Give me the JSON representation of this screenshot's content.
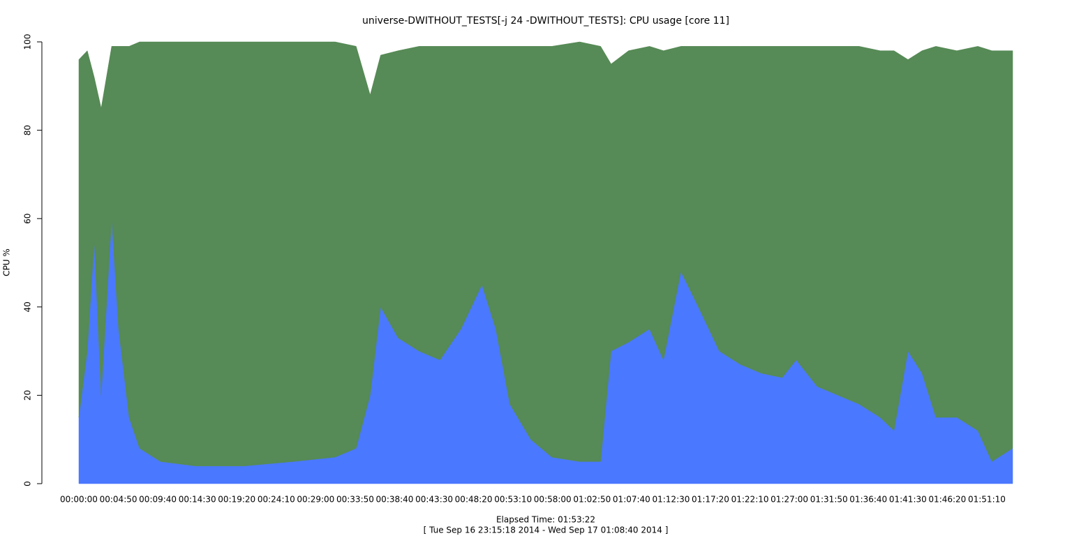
{
  "chart_data": {
    "type": "stacked-area",
    "title": "universe-DWITHOUT_TESTS[-j 24  -DWITHOUT_TESTS]: CPU usage [core 11]",
    "y_label": "CPU %",
    "x_label": "Elapsed Time: 01:53:22",
    "subtitle": "[ Tue Sep 16 23:15:18 2014 - Wed Sep 17 01:08:40 2014 ]",
    "x": [
      0,
      62,
      113,
      164,
      241,
      292,
      369,
      446,
      600,
      857,
      1216,
      1575,
      1883,
      2037,
      2140,
      2217,
      2345,
      2499,
      2653,
      2807,
      2961,
      3063,
      3166,
      3320,
      3474,
      3679,
      3833,
      3910,
      4038,
      4192,
      4295,
      4423,
      4551,
      4705,
      4859,
      5013,
      5167,
      5270,
      5424,
      5578,
      5732,
      5886,
      5988,
      6091,
      6194,
      6296,
      6450,
      6604,
      6707,
      6860
    ],
    "series": [
      {
        "color": "#4a78ff",
        "values": [
          15,
          30,
          55,
          20,
          60,
          35,
          15,
          8,
          5,
          4,
          4,
          5,
          6,
          8,
          20,
          40,
          33,
          30,
          28,
          35,
          45,
          35,
          18,
          10,
          6,
          5,
          5,
          30,
          32,
          35,
          28,
          48,
          40,
          30,
          27,
          25,
          24,
          28,
          22,
          20,
          18,
          15,
          12,
          30,
          25,
          15,
          15,
          12,
          5,
          8
        ]
      },
      {
        "color": "#568a56",
        "values": [
          81,
          68,
          37,
          65,
          39,
          64,
          84,
          92,
          95,
          96,
          96,
          95,
          94,
          91,
          68,
          57,
          65,
          69,
          71,
          64,
          54,
          64,
          81,
          89,
          93,
          95,
          94,
          65,
          66,
          64,
          70,
          51,
          59,
          69,
          72,
          74,
          75,
          71,
          77,
          79,
          81,
          83,
          86,
          66,
          73,
          84,
          83,
          87,
          93,
          90
        ]
      }
    ],
    "xlim": [
      0,
      6860
    ],
    "ylim": [
      0,
      100
    ],
    "yticks": [
      0,
      20,
      40,
      60,
      80,
      100
    ],
    "xticks": [
      {
        "value": 0,
        "label": "00:00:00"
      },
      {
        "value": 290,
        "label": "00:04:50"
      },
      {
        "value": 580,
        "label": "00:09:40"
      },
      {
        "value": 870,
        "label": "00:14:30"
      },
      {
        "value": 1160,
        "label": "00:19:20"
      },
      {
        "value": 1450,
        "label": "00:24:10"
      },
      {
        "value": 1740,
        "label": "00:29:00"
      },
      {
        "value": 2030,
        "label": "00:33:50"
      },
      {
        "value": 2320,
        "label": "00:38:40"
      },
      {
        "value": 2610,
        "label": "00:43:30"
      },
      {
        "value": 2900,
        "label": "00:48:20"
      },
      {
        "value": 3190,
        "label": "00:53:10"
      },
      {
        "value": 3480,
        "label": "00:58:00"
      },
      {
        "value": 3770,
        "label": "01:02:50"
      },
      {
        "value": 4060,
        "label": "01:07:40"
      },
      {
        "value": 4350,
        "label": "01:12:30"
      },
      {
        "value": 4640,
        "label": "01:17:20"
      },
      {
        "value": 4930,
        "label": "01:22:10"
      },
      {
        "value": 5220,
        "label": "01:27:00"
      },
      {
        "value": 5510,
        "label": "01:31:50"
      },
      {
        "value": 5800,
        "label": "01:36:40"
      },
      {
        "value": 6090,
        "label": "01:41:30"
      },
      {
        "value": 6380,
        "label": "01:46:20"
      },
      {
        "value": 6670,
        "label": "01:51:10"
      }
    ]
  }
}
